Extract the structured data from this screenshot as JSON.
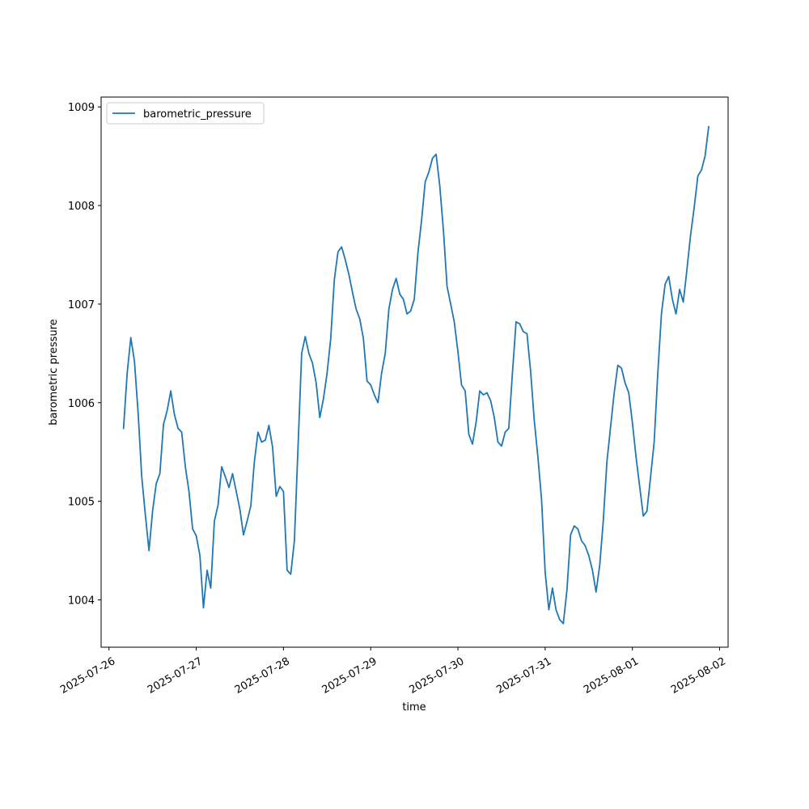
{
  "chart_data": {
    "type": "line",
    "title": "",
    "xlabel": "time",
    "ylabel": "barometric pressure",
    "x_ticks": [
      "2025-07-26",
      "2025-07-27",
      "2025-07-28",
      "2025-07-29",
      "2025-07-30",
      "2025-07-31",
      "2025-08-01",
      "2025-08-02"
    ],
    "y_ticks": [
      1004,
      1005,
      1006,
      1007,
      1008,
      1009
    ],
    "xlim": [
      "2025-07-25T21:50",
      "2025-08-02T02:20"
    ],
    "ylim": [
      1003.52,
      1009.1
    ],
    "grid": false,
    "legend": "top-left",
    "series_color": "#1f77b4",
    "series": [
      {
        "name": "barometric_pressure",
        "x_start": "2025-07-26T04:00",
        "x_step_hours": 1,
        "values": [
          1005.74,
          1006.3,
          1006.66,
          1006.42,
          1005.9,
          1005.25,
          1004.86,
          1004.5,
          1004.9,
          1005.18,
          1005.28,
          1005.78,
          1005.92,
          1006.12,
          1005.88,
          1005.74,
          1005.7,
          1005.35,
          1005.1,
          1004.72,
          1004.65,
          1004.45,
          1003.92,
          1004.3,
          1004.12,
          1004.8,
          1004.96,
          1005.35,
          1005.25,
          1005.14,
          1005.28,
          1005.1,
          1004.92,
          1004.66,
          1004.8,
          1004.95,
          1005.4,
          1005.7,
          1005.6,
          1005.62,
          1005.77,
          1005.55,
          1005.05,
          1005.15,
          1005.1,
          1004.3,
          1004.26,
          1004.6,
          1005.55,
          1006.5,
          1006.67,
          1006.5,
          1006.4,
          1006.2,
          1005.85,
          1006.04,
          1006.3,
          1006.65,
          1007.25,
          1007.53,
          1007.58,
          1007.45,
          1007.3,
          1007.12,
          1006.95,
          1006.85,
          1006.65,
          1006.22,
          1006.18,
          1006.08,
          1006.0,
          1006.3,
          1006.5,
          1006.95,
          1007.15,
          1007.26,
          1007.1,
          1007.05,
          1006.9,
          1006.93,
          1007.05,
          1007.52,
          1007.85,
          1008.24,
          1008.34,
          1008.48,
          1008.52,
          1008.2,
          1007.75,
          1007.18,
          1007.0,
          1006.82,
          1006.52,
          1006.18,
          1006.12,
          1005.68,
          1005.58,
          1005.8,
          1006.12,
          1006.08,
          1006.1,
          1006.02,
          1005.85,
          1005.6,
          1005.56,
          1005.7,
          1005.74,
          1006.3,
          1006.82,
          1006.8,
          1006.72,
          1006.7,
          1006.32,
          1005.82,
          1005.45,
          1005.02,
          1004.28,
          1003.9,
          1004.12,
          1003.9,
          1003.8,
          1003.76,
          1004.1,
          1004.66,
          1004.75,
          1004.72,
          1004.6,
          1004.55,
          1004.45,
          1004.3,
          1004.08,
          1004.35,
          1004.8,
          1005.4,
          1005.75,
          1006.1,
          1006.38,
          1006.35,
          1006.2,
          1006.1,
          1005.8,
          1005.45,
          1005.15,
          1004.85,
          1004.9,
          1005.25,
          1005.6,
          1006.3,
          1006.9,
          1007.2,
          1007.28,
          1007.05,
          1006.9,
          1007.15,
          1007.02,
          1007.35,
          1007.7,
          1007.98,
          1008.3,
          1008.36,
          1008.5,
          1008.8
        ]
      }
    ]
  }
}
